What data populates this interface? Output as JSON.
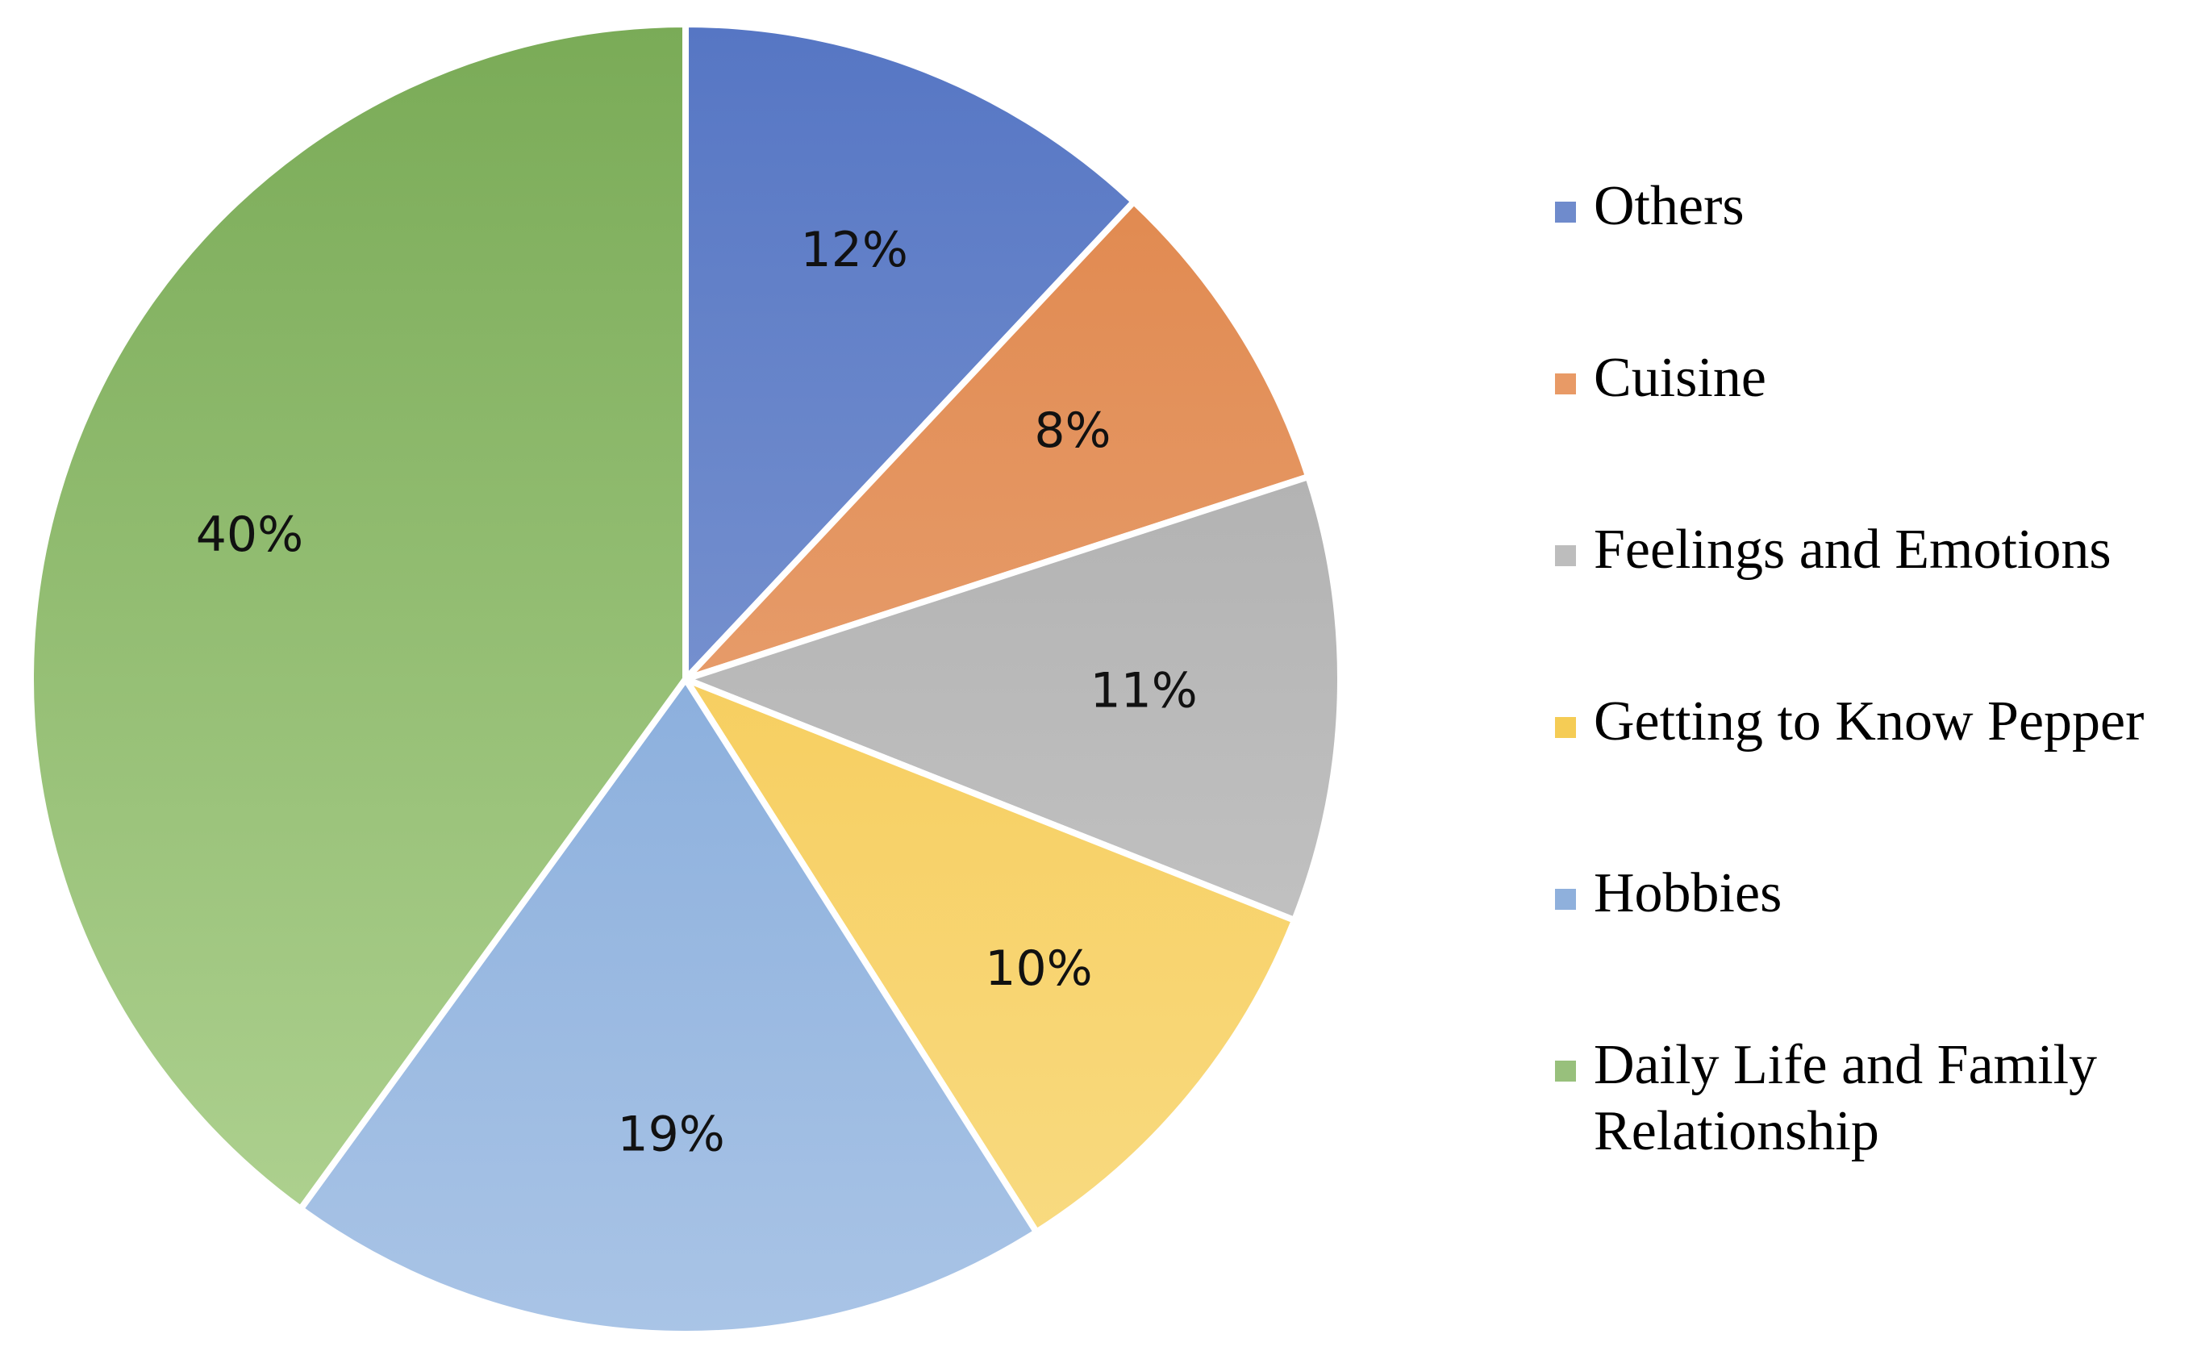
{
  "chart_data": {
    "type": "pie",
    "title": "",
    "legend_position": "right",
    "start_angle_deg": 0,
    "direction": "clockwise",
    "slices": [
      {
        "label": "Others",
        "value": 12,
        "display": "12%",
        "color": "#6f8bcc",
        "gradient": [
          "#5676c4",
          "#93a9d8"
        ]
      },
      {
        "label": "Cuisine",
        "value": 8,
        "display": "8%",
        "color": "#e89a66",
        "gradient": [
          "#df8448",
          "#edb28a"
        ]
      },
      {
        "label": "Feelings and Emotions",
        "value": 11,
        "display": "11%",
        "color": "#bdbdbd",
        "gradient": [
          "#a5a5a5",
          "#cdcdcd"
        ]
      },
      {
        "label": "Getting to Know Pepper",
        "value": 10,
        "display": "10%",
        "color": "#f5cc55",
        "gradient": [
          "#f4c13c",
          "#f9dc85"
        ]
      },
      {
        "label": "Hobbies",
        "value": 19,
        "display": "19%",
        "color": "#8fb0dc",
        "gradient": [
          "#6f9bd4",
          "#a9c4e6"
        ]
      },
      {
        "label": "Daily Life and Family Relationship",
        "value": 40,
        "display": "40%",
        "color": "#98c07c",
        "gradient": [
          "#7aab57",
          "#b2d494"
        ]
      }
    ]
  }
}
